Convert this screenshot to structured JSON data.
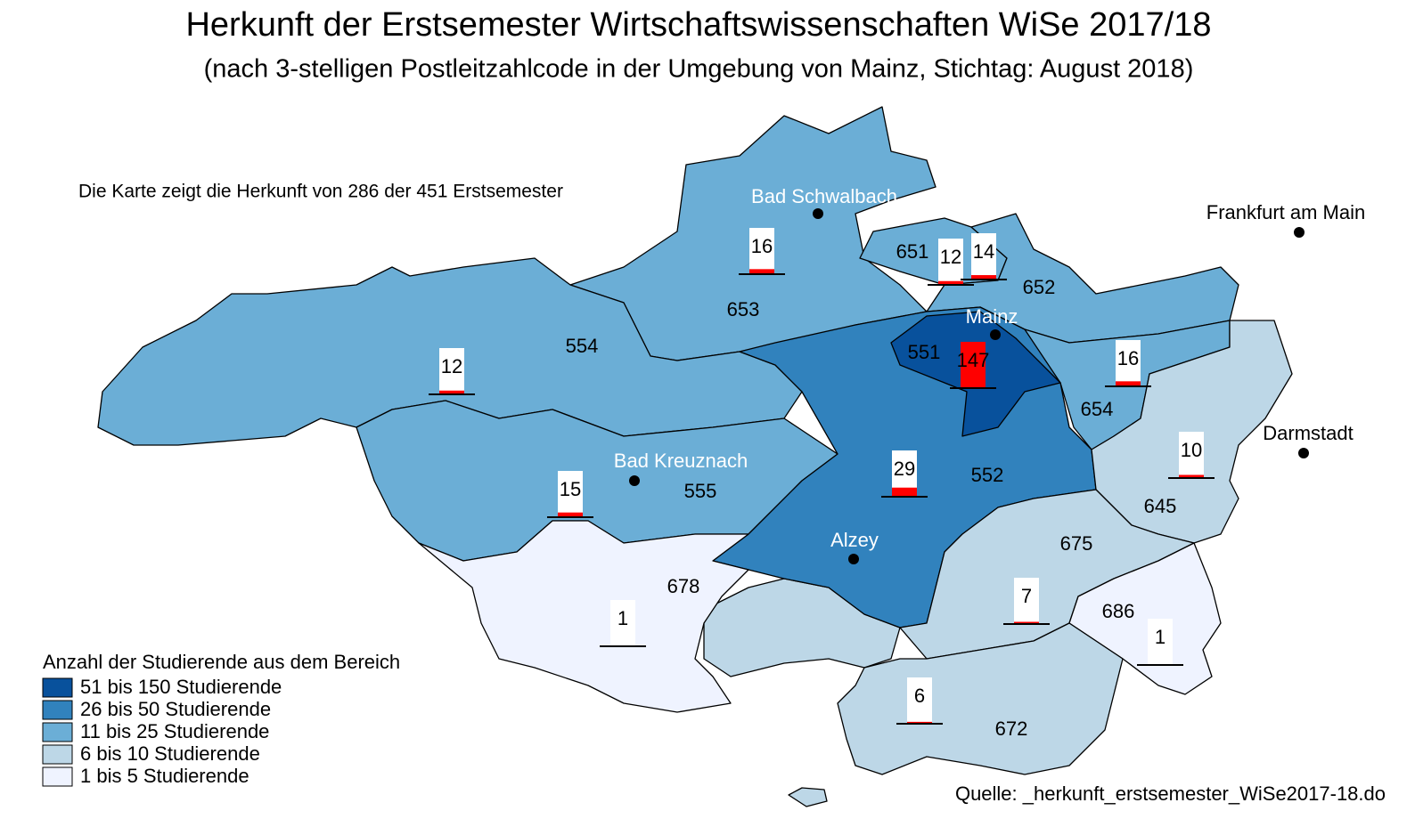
{
  "title": "Herkunft der Erstsemester Wirtschaftswissenschaften WiSe 2017/18",
  "subtitle": "(nach 3-stelligen Postleitzahlcode in der Umgebung von Mainz, Stichtag: August 2018)",
  "note": "Die Karte zeigt die Herkunft von 286 der 451 Erstsemester",
  "source": "Quelle: _herkunft_erstsemester_WiSe2017-18.do",
  "legend": {
    "title": "Anzahl der Studierende aus dem Bereich",
    "classes": [
      {
        "label": "51 bis 150 Studierende",
        "color": "#08519c"
      },
      {
        "label": "26 bis 50 Studierende",
        "color": "#3182bd"
      },
      {
        "label": "11 bis 25 Studierende",
        "color": "#6baed6"
      },
      {
        "label": "6 bis 10 Studierende",
        "color": "#bdd7e7"
      },
      {
        "label": "1 bis 5 Studierende",
        "color": "#eff3ff"
      }
    ]
  },
  "regions": [
    {
      "code": "653",
      "count": 16,
      "color": "#6baed6"
    },
    {
      "code": "651",
      "count": 12,
      "color": "#6baed6"
    },
    {
      "code": "652",
      "count": 14,
      "color": "#6baed6"
    },
    {
      "code": "654",
      "count": 16,
      "color": "#6baed6"
    },
    {
      "code": "554",
      "count": 12,
      "color": "#6baed6"
    },
    {
      "code": "555",
      "count": 15,
      "color": "#6baed6"
    },
    {
      "code": "552",
      "count": 29,
      "color": "#3182bd"
    },
    {
      "code": "551",
      "count": 147,
      "color": "#08519c"
    },
    {
      "code": "645",
      "count": 10,
      "color": "#bdd7e7"
    },
    {
      "code": "675",
      "count": 7,
      "color": "#bdd7e7"
    },
    {
      "code": "686",
      "count": 1,
      "color": "#eff3ff"
    },
    {
      "code": "678",
      "count": 1,
      "color": "#eff3ff"
    },
    {
      "code": "672",
      "count": 6,
      "color": "#bdd7e7"
    }
  ],
  "cities": [
    {
      "name": "Bad Schwalbach",
      "color": "#ffffff"
    },
    {
      "name": "Frankfurt am Main",
      "color": "#000000"
    },
    {
      "name": "Mainz",
      "color": "#ffffff"
    },
    {
      "name": "Darmstadt",
      "color": "#000000"
    },
    {
      "name": "Bad Kreuznach",
      "color": "#ffffff"
    },
    {
      "name": "Alzey",
      "color": "#ffffff"
    }
  ],
  "bar_color": "#ff0000"
}
